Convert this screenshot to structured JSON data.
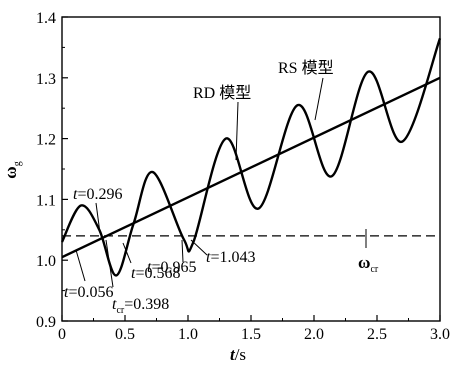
{
  "chart_data": {
    "type": "line",
    "title": "",
    "xlabel": {
      "var": "t",
      "unit": "/s"
    },
    "ylabel": {
      "var": "ω",
      "sub": "g"
    },
    "xlim": [
      0,
      3.0
    ],
    "ylim": [
      0.9,
      1.4
    ],
    "x_ticks": [
      "0",
      "0.5",
      "1.0",
      "1.5",
      "2.0",
      "2.5",
      "3.0"
    ],
    "y_ticks": [
      "0.9",
      "1.0",
      "1.1",
      "1.2",
      "1.3",
      "1.4"
    ],
    "grid": false,
    "series": [
      {
        "name": "RD 模型",
        "style": "solid-thick",
        "x": [
          0,
          3.0
        ],
        "y": [
          1.005,
          1.3
        ]
      },
      {
        "name": "RS 模型",
        "style": "solid-wavy",
        "x": [
          0,
          0.15,
          0.296,
          0.43,
          0.568,
          0.72,
          0.965,
          1.043,
          1.3,
          1.56,
          1.87,
          2.14,
          2.43,
          2.7,
          3.0
        ],
        "y": [
          1.03,
          1.09,
          1.05,
          0.975,
          1.06,
          1.145,
          1.035,
          1.03,
          1.2,
          1.085,
          1.255,
          1.138,
          1.31,
          1.195,
          1.365
        ]
      },
      {
        "name": "ω cr",
        "style": "dashed",
        "x": [
          0,
          3.0
        ],
        "y": [
          1.04,
          1.04
        ]
      }
    ],
    "annotations": [
      {
        "prefix": "t",
        "value": "=0.296",
        "x": 0.296
      },
      {
        "prefix": "t",
        "value": "=0.056",
        "x": 0.056
      },
      {
        "prefix": "t",
        "value": "=0.568",
        "x": 0.568
      },
      {
        "prefix": "t",
        "sub": "cr",
        "value": "=0.398",
        "x": 0.398
      },
      {
        "prefix": "t",
        "value": "=0.965",
        "x": 0.965
      },
      {
        "prefix": "t",
        "value": "=1.043",
        "x": 1.043
      }
    ],
    "legend_labels": {
      "rd": "RD 模型",
      "rs": "RS 模型",
      "wcr_main": "ω",
      "wcr_sub": "cr"
    }
  }
}
